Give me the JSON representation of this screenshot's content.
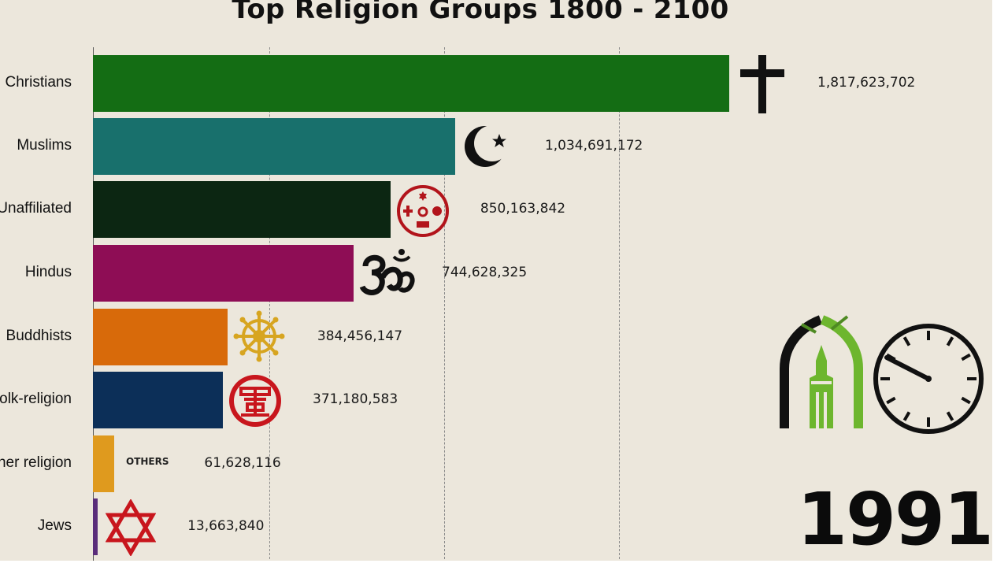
{
  "chart_data": {
    "type": "bar",
    "orientation": "horizontal",
    "title": "Top Religion Groups 1800 - 2100",
    "categories": [
      "Christians",
      "Muslims",
      "Unaffiliated",
      "Hindus",
      "Buddhists",
      "Folk-religion",
      "Other religion",
      "Jews"
    ],
    "values": [
      1817623702,
      1034691172,
      850163842,
      744628325,
      384456147,
      371180583,
      61628116,
      13663840
    ],
    "value_labels": [
      "1,817,623,702",
      "1,034,691,172",
      "850,163,842",
      "744,628,325",
      "384,456,147",
      "371,180,583",
      "61,628,116",
      "13,663,840"
    ],
    "colors": [
      "#146d14",
      "#18706c",
      "#0c2612",
      "#8e0d55",
      "#d86a0a",
      "#0c2f58",
      "#df9a1e",
      "#5a2d7a"
    ],
    "icons": [
      "cross-icon",
      "crescent-star-icon",
      "religious-symbols-circle-icon",
      "om-icon",
      "dharma-wheel-icon",
      "folk-religion-emblem-icon",
      "others-text-icon",
      "star-of-david-icon"
    ],
    "year": "1991",
    "grid": true,
    "legend": "none"
  },
  "others_icon_text": "OTHERS"
}
